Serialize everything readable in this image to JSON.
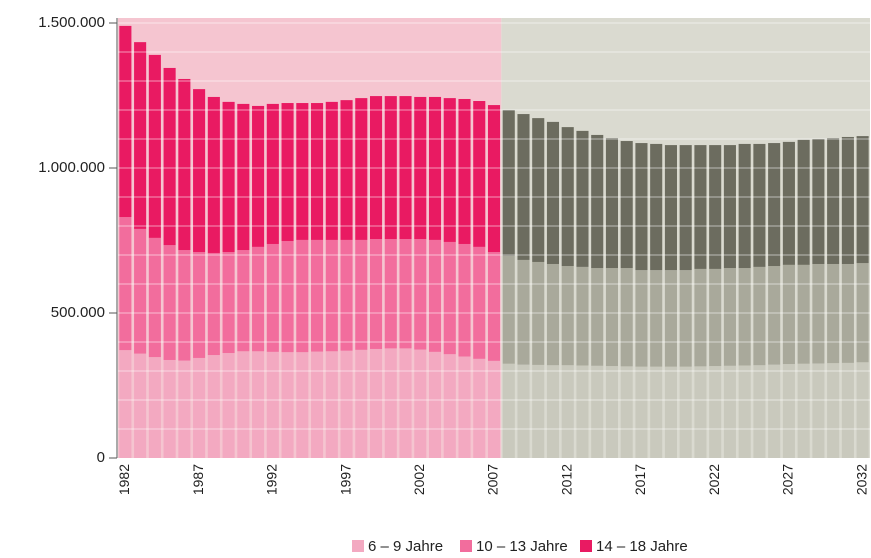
{
  "chart_data": {
    "type": "stacked_bar",
    "categories": [
      "1982",
      null,
      null,
      null,
      null,
      "1987",
      null,
      null,
      null,
      null,
      "1992",
      null,
      null,
      null,
      null,
      "1997",
      null,
      null,
      null,
      null,
      "2002",
      null,
      null,
      null,
      null,
      "2007",
      null,
      null,
      null,
      null,
      "2012",
      null,
      null,
      null,
      null,
      "2017",
      null,
      null,
      null,
      null,
      "2022",
      null,
      null,
      null,
      null,
      "2027",
      null,
      null,
      null,
      null,
      "2032"
    ],
    "series": [
      {
        "name": "6 – 9 Jahre",
        "color": "#f3a9c1",
        "projection_color": "#c9c9bd",
        "values": [
          372000,
          360000,
          348000,
          338000,
          336000,
          345000,
          355000,
          362000,
          368000,
          368000,
          366000,
          365000,
          365000,
          367000,
          368000,
          370000,
          373000,
          376000,
          378000,
          378000,
          374000,
          366000,
          358000,
          350000,
          342000,
          335000,
          325000,
          322000,
          321000,
          320000,
          320000,
          319000,
          318000,
          317000,
          316000,
          315000,
          315000,
          315000,
          315000,
          316000,
          317000,
          318000,
          319000,
          320000,
          322000,
          324000,
          325000,
          326000,
          327000,
          328000,
          330000
        ]
      },
      {
        "name": "10 – 13 Jahre",
        "color": "#f26d9d",
        "projection_color": "#a9a99b",
        "values": [
          459000,
          430000,
          411000,
          396000,
          381000,
          365000,
          352000,
          348000,
          349000,
          360000,
          372000,
          383000,
          387000,
          385000,
          384000,
          382000,
          379000,
          379000,
          377000,
          377000,
          381000,
          386000,
          387000,
          388000,
          386000,
          375000,
          372000,
          361000,
          355000,
          349000,
          342000,
          340000,
          337000,
          338000,
          339000,
          333000,
          333000,
          333000,
          333000,
          336000,
          335000,
          337000,
          336000,
          339000,
          340000,
          342000,
          341000,
          343000,
          342000,
          341000,
          342000
        ]
      },
      {
        "name": "14 – 18 Jahre",
        "color": "#e91a62",
        "projection_color": "#6c6c5f",
        "values": [
          659000,
          644000,
          631000,
          611000,
          590000,
          562000,
          538000,
          518000,
          504000,
          486000,
          483000,
          476000,
          472000,
          472000,
          476000,
          482000,
          489000,
          493000,
          493000,
          493000,
          490000,
          493000,
          496000,
          500000,
          503000,
          507000,
          503000,
          503000,
          496000,
          490000,
          479000,
          469000,
          459000,
          448000,
          438000,
          438000,
          435000,
          431000,
          431000,
          427000,
          427000,
          424000,
          428000,
          424000,
          424000,
          424000,
          431000,
          431000,
          434000,
          438000,
          438000
        ]
      }
    ],
    "projection_start_index": 26,
    "background_colors": [
      "#f5c5d0",
      "#dadad0"
    ],
    "ylim": [
      0,
      1500000
    ],
    "yticks": [
      0,
      {
        "value": 500000,
        "label": "500.000"
      },
      {
        "value": 1000000,
        "label": "1.000.000"
      },
      {
        "value": 1500000,
        "label": "1.500.000"
      }
    ],
    "grid_yticks": [
      100000,
      200000,
      300000,
      400000,
      500000,
      600000,
      700000,
      800000,
      900000,
      1000000,
      1100000,
      1200000,
      1300000,
      1400000,
      1500000
    ],
    "legend": "bottom"
  }
}
